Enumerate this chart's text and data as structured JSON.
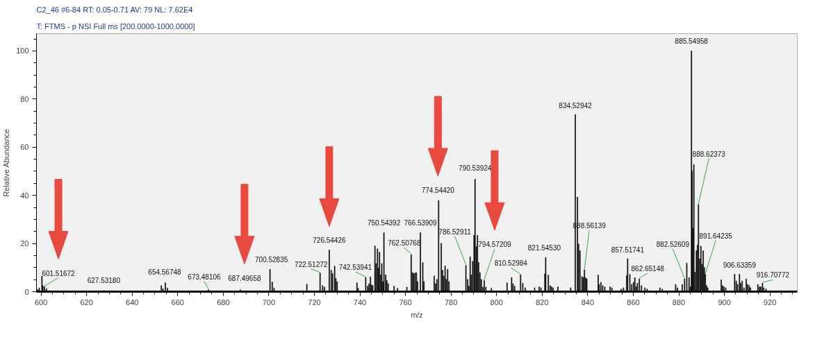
{
  "chart_data": {
    "type": "bar",
    "title": "C2_46 #6-84  RT: 0.05-0.71  AV: 79  NL: 7.62E4",
    "subtitle": "T: FTMS - p NSI Full ms [200.0000-1000.0000]",
    "xlabel": "m/z",
    "ylabel": "Relative Abundance",
    "color": "#000000",
    "x": [
      598.4,
      599.2,
      600.4,
      600.8,
      601.52,
      602.4,
      627.53,
      652.8,
      653.5,
      654.57,
      655.5,
      673.48,
      687.5,
      700.53,
      701.5,
      702.3,
      716.7,
      722.51,
      723.6,
      724.4,
      726.54,
      727.4,
      728.0,
      728.9,
      729.4,
      730.0,
      738.7,
      739.2,
      742.54,
      743.4,
      744.0,
      744.6,
      745.1,
      745.6,
      746.6,
      747.1,
      747.7,
      748.1,
      748.6,
      749.1,
      749.6,
      750.1,
      750.54,
      751.3,
      751.8,
      752.4,
      755.0,
      756.5,
      760.6,
      762.51,
      763.1,
      763.6,
      764.2,
      764.8,
      765.3,
      766.54,
      767.6,
      768.1,
      772.6,
      773.2,
      773.8,
      774.54,
      775.7,
      776.3,
      776.8,
      777.4,
      777.9,
      778.5,
      779.1,
      786.53,
      787.3,
      787.8,
      788.4,
      788.9,
      789.5,
      790.1,
      790.54,
      791.1,
      791.6,
      792.1,
      792.7,
      793.3,
      793.9,
      794.57,
      795.3,
      797.7,
      804.6,
      806.6,
      807.2,
      807.9,
      810.53,
      811.5,
      812.6,
      816.7,
      818.7,
      819.5,
      821.2,
      821.55,
      822.7,
      823.5,
      824.1,
      824.8,
      826.9,
      832.5,
      834.53,
      835.5,
      836.0,
      836.6,
      837.5,
      838.0,
      838.56,
      839.1,
      839.6,
      844.6,
      845.0,
      845.8,
      846.6,
      847.5,
      849.8,
      850.6,
      854.7,
      855.7,
      857.1,
      857.52,
      858.5,
      859.3,
      860.1,
      860.7,
      861.3,
      861.8,
      862.65,
      863.6,
      865.1,
      866.1,
      871.7,
      872.7,
      878.6,
      879.4,
      881.5,
      882.53,
      883.5,
      884.5,
      885.1,
      885.55,
      885.8,
      886.1,
      886.6,
      887.1,
      887.7,
      888.2,
      888.62,
      889.2,
      889.7,
      890.2,
      890.7,
      891.2,
      891.64,
      892.2,
      892.7,
      898.6,
      899.2,
      899.8,
      900.6,
      904.5,
      905.2,
      905.8,
      906.63,
      907.1,
      907.8,
      908.6,
      909.6,
      910.2,
      910.9,
      911.4,
      914.7,
      915.4,
      916.0,
      916.71,
      917.3,
      918.3
    ],
    "values": [
      0.9,
      1.5,
      6.5,
      2.5,
      2,
      1.2,
      0.5,
      2.5,
      1.2,
      3.7,
      1.5,
      0.8,
      0.8,
      9.3,
      4,
      1.5,
      3.1,
      7.7,
      2.5,
      1.9,
      17.3,
      8.9,
      7.5,
      10.6,
      5.6,
      4.2,
      3.7,
      1.4,
      5.9,
      2.3,
      3.3,
      6.1,
      2.8,
      2.5,
      19,
      11.7,
      17.8,
      9.8,
      16.4,
      7,
      11.7,
      4.2,
      24.5,
      7,
      4.7,
      3.3,
      2.3,
      1.4,
      1.9,
      15.4,
      7.9,
      7.5,
      7.8,
      7.9,
      4.2,
      24.5,
      12.1,
      4.2,
      6.5,
      3.3,
      5.1,
      37.9,
      20.1,
      8.9,
      6.5,
      10.7,
      5.1,
      9.3,
      4.2,
      10.9,
      5.1,
      2.3,
      14.5,
      7,
      12.6,
      23.4,
      46.7,
      18.7,
      23.4,
      12.1,
      7.9,
      5.1,
      1.9,
      4.7,
      1.9,
      1.4,
      3.7,
      5.9,
      3.3,
      2.3,
      7,
      3.5,
      1.6,
      1.6,
      2,
      1.6,
      7.4,
      14.2,
      6.9,
      2.5,
      2,
      1.6,
      2,
      1.6,
      73.6,
      39.3,
      19.8,
      17,
      6.3,
      5.8,
      9.1,
      5.8,
      5.3,
      6.9,
      3,
      3.9,
      2.5,
      2,
      2,
      1.6,
      1.1,
      1.6,
      6.7,
      13.7,
      7.2,
      3,
      3.9,
      5.8,
      2,
      3.5,
      5.3,
      2.5,
      1.6,
      1.1,
      1.6,
      1.1,
      3,
      1.6,
      3,
      5.3,
      11.9,
      5.8,
      2,
      100,
      50.2,
      26.4,
      52.8,
      8.1,
      17,
      19.3,
      36.2,
      13.7,
      18.9,
      11.4,
      17,
      10,
      7.2,
      2.5,
      1.6,
      4.9,
      2.5,
      2,
      1.6,
      7.2,
      4.4,
      3,
      7.2,
      3.5,
      4.4,
      1.6,
      5.3,
      3,
      2.5,
      1.6,
      3,
      2,
      2,
      3.5,
      1.6,
      1.1
    ],
    "xlim": [
      598,
      932
    ],
    "ylim": [
      0,
      107.2
    ],
    "xticks": [
      600,
      {
        "value": 605,
        "label": null
      },
      {
        "value": 610,
        "label": null
      },
      {
        "value": 615,
        "label": null
      },
      620,
      {
        "value": 625,
        "label": null
      },
      {
        "value": 630,
        "label": null
      },
      {
        "value": 635,
        "label": null
      },
      640,
      {
        "value": 645,
        "label": null
      },
      {
        "value": 650,
        "label": null
      },
      {
        "value": 655,
        "label": null
      },
      660,
      {
        "value": 665,
        "label": null
      },
      {
        "value": 670,
        "label": null
      },
      {
        "value": 675,
        "label": null
      },
      680,
      {
        "value": 685,
        "label": null
      },
      {
        "value": 690,
        "label": null
      },
      {
        "value": 695,
        "label": null
      },
      700,
      {
        "value": 705,
        "label": null
      },
      {
        "value": 710,
        "label": null
      },
      {
        "value": 715,
        "label": null
      },
      720,
      {
        "value": 725,
        "label": null
      },
      {
        "value": 730,
        "label": null
      },
      {
        "value": 735,
        "label": null
      },
      740,
      {
        "value": 745,
        "label": null
      },
      {
        "value": 750,
        "label": null
      },
      {
        "value": 755,
        "label": null
      },
      760,
      {
        "value": 765,
        "label": null
      },
      {
        "value": 770,
        "label": null
      },
      {
        "value": 775,
        "label": null
      },
      780,
      {
        "value": 785,
        "label": null
      },
      {
        "value": 790,
        "label": null
      },
      {
        "value": 795,
        "label": null
      },
      800,
      {
        "value": 805,
        "label": null
      },
      {
        "value": 810,
        "label": null
      },
      {
        "value": 815,
        "label": null
      },
      820,
      {
        "value": 825,
        "label": null
      },
      {
        "value": 830,
        "label": null
      },
      {
        "value": 835,
        "label": null
      },
      840,
      {
        "value": 845,
        "label": null
      },
      {
        "value": 850,
        "label": null
      },
      {
        "value": 855,
        "label": null
      },
      860,
      {
        "value": 865,
        "label": null
      },
      {
        "value": 870,
        "label": null
      },
      {
        "value": 875,
        "label": null
      },
      880,
      {
        "value": 885,
        "label": null
      },
      {
        "value": 890,
        "label": null
      },
      {
        "value": 895,
        "label": null
      },
      900,
      {
        "value": 905,
        "label": null
      },
      {
        "value": 910,
        "label": null
      },
      {
        "value": 915,
        "label": null
      },
      920,
      {
        "value": 925,
        "label": null
      },
      {
        "value": 930,
        "label": null
      }
    ],
    "yticks": [
      0,
      {
        "value": 5,
        "label": null
      },
      {
        "value": 10,
        "label": null
      },
      {
        "value": 15,
        "label": null
      },
      20,
      {
        "value": 25,
        "label": null
      },
      {
        "value": 30,
        "label": null
      },
      {
        "value": 35,
        "label": null
      },
      40,
      {
        "value": 45,
        "label": null
      },
      {
        "value": 50,
        "label": null
      },
      {
        "value": 55,
        "label": null
      },
      60,
      {
        "value": 65,
        "label": null
      },
      {
        "value": 70,
        "label": null
      },
      {
        "value": 75,
        "label": null
      },
      80,
      {
        "value": 85,
        "label": null
      },
      {
        "value": 90,
        "label": null
      },
      {
        "value": 95,
        "label": null
      },
      100,
      {
        "value": 105,
        "label": null
      }
    ],
    "annotations": [
      {
        "text": "601.51672",
        "x": 601.52,
        "y": 2
      },
      {
        "text": "627.53180",
        "x": 627.53,
        "y": 0.5
      },
      {
        "text": "654.56748",
        "x": 654.57,
        "y": 3.7
      },
      {
        "text": "673.48106",
        "x": 673.48,
        "y": 0.8
      },
      {
        "text": "687.49658",
        "x": 687.5,
        "y": 0.8
      },
      {
        "text": "700.52835",
        "x": 700.53,
        "y": 9.3
      },
      {
        "text": "722.51272",
        "x": 722.51,
        "y": 7.7
      },
      {
        "text": "726.54426",
        "x": 726.54,
        "y": 17.3
      },
      {
        "text": "742.53941",
        "x": 742.54,
        "y": 5.9
      },
      {
        "text": "750.54392",
        "x": 750.54,
        "y": 24.5
      },
      {
        "text": "762.50768",
        "x": 762.51,
        "y": 15.4
      },
      {
        "text": "766.53909",
        "x": 766.54,
        "y": 24.5
      },
      {
        "text": "774.54420",
        "x": 774.54,
        "y": 37.9
      },
      {
        "text": "786.52911",
        "x": 786.53,
        "y": 10.9
      },
      {
        "text": "790.53924",
        "x": 790.54,
        "y": 46.7
      },
      {
        "text": "794.57209",
        "x": 794.57,
        "y": 4.7
      },
      {
        "text": "810.52984",
        "x": 810.53,
        "y": 7
      },
      {
        "text": "821.54530",
        "x": 821.55,
        "y": 14.2
      },
      {
        "text": "834.52942",
        "x": 834.53,
        "y": 73.6
      },
      {
        "text": "838.56139",
        "x": 838.56,
        "y": 9.1
      },
      {
        "text": "857.51741",
        "x": 857.52,
        "y": 13.7
      },
      {
        "text": "862.65148",
        "x": 862.65,
        "y": 5.3
      },
      {
        "text": "882.52609",
        "x": 882.53,
        "y": 5.3
      },
      {
        "text": "885.54958",
        "x": 885.55,
        "y": 100
      },
      {
        "text": "888.62373",
        "x": 888.62,
        "y": 36.2
      },
      {
        "text": "891.64235",
        "x": 891.64,
        "y": 7.2
      },
      {
        "text": "906.63359",
        "x": 906.63,
        "y": 7.2
      },
      {
        "text": "916.70772",
        "x": 916.71,
        "y": 3.5
      }
    ]
  }
}
